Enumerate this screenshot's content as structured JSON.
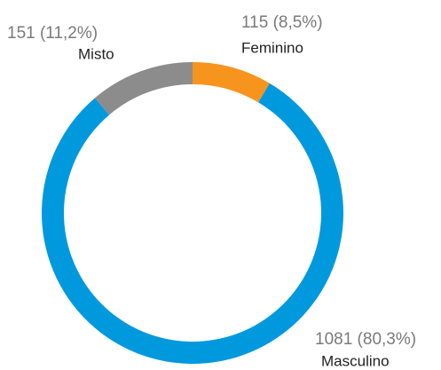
{
  "chart_data": {
    "type": "donut",
    "categories": [
      "Feminino",
      "Masculino",
      "Misto"
    ],
    "values": [
      115,
      1081,
      151
    ],
    "value_labels": [
      "115 (8,5%)",
      "1081 (80,3%)",
      "151 (11,2%)"
    ],
    "colors": [
      "#f7941d",
      "#0099dd",
      "#8c8c8c"
    ]
  }
}
